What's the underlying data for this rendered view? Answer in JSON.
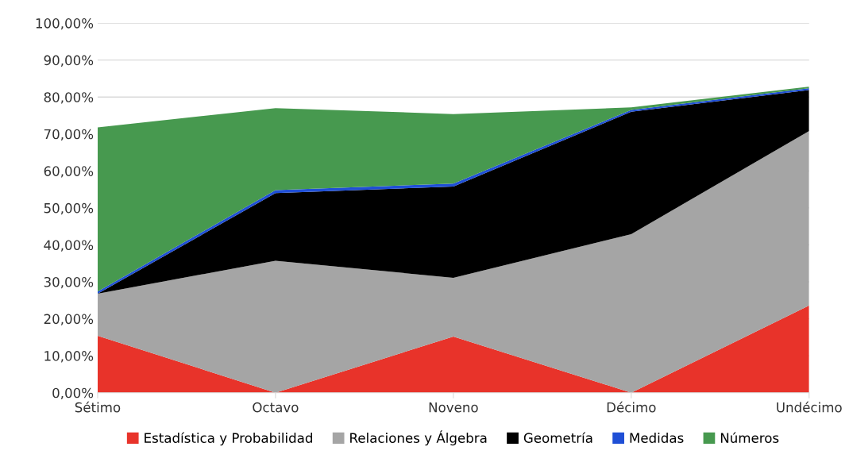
{
  "chart_data": {
    "type": "area",
    "stacked": true,
    "categories": [
      "Sétimo",
      "Octavo",
      "Noveno",
      "Décimo",
      "Undécimo"
    ],
    "series": [
      {
        "name": "Estadística y Probabilidad",
        "color": "#e8332a",
        "values": [
          15.4,
          0,
          15.2,
          0,
          23.6
        ]
      },
      {
        "name": "Relaciones y Álgebra",
        "color": "#a5a5a5",
        "values": [
          11.4,
          35.7,
          15.9,
          42.9,
          47.2
        ]
      },
      {
        "name": "Geometría",
        "color": "#000000",
        "values": [
          0,
          18.3,
          24.7,
          33.1,
          11.1
        ]
      },
      {
        "name": "Medidas",
        "color": "#1f4fd6",
        "values": [
          0.6,
          0.8,
          0.8,
          0.5,
          0.5
        ]
      },
      {
        "name": "Números",
        "color": "#47994f",
        "values": [
          44.4,
          22.2,
          18.8,
          0.7,
          0.4
        ]
      }
    ],
    "ylim": [
      0,
      100
    ],
    "yticks": [
      {
        "value": 0,
        "label": "0,00%"
      },
      {
        "value": 10,
        "label": "10,00%"
      },
      {
        "value": 20,
        "label": "20,00%"
      },
      {
        "value": 30,
        "label": "30,00%"
      },
      {
        "value": 40,
        "label": "40,00%"
      },
      {
        "value": 50,
        "label": "50,00%"
      },
      {
        "value": 60,
        "label": "60,00%"
      },
      {
        "value": 70,
        "label": "70,00%"
      },
      {
        "value": 80,
        "label": "80,00%"
      },
      {
        "value": 90,
        "label": "90,00%"
      },
      {
        "value": 100,
        "label": "100,00%"
      }
    ],
    "grid": "y",
    "legend": "bottom"
  }
}
